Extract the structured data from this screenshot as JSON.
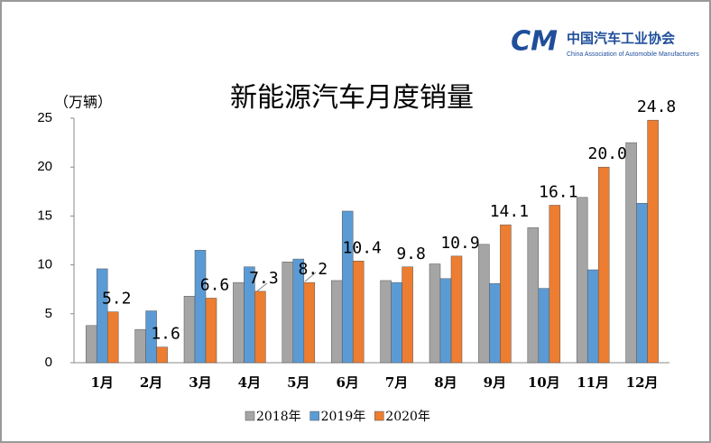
{
  "chart_data": {
    "type": "bar",
    "title": "新能源汽车月度销量",
    "y_label": "（万辆）",
    "logo": {
      "mark": "CM",
      "name": "中国汽车工业协会",
      "subtitle": "China Association of Automobile Manufacturers"
    },
    "categories": [
      "1月",
      "2月",
      "3月",
      "4月",
      "5月",
      "6月",
      "7月",
      "8月",
      "9月",
      "10月",
      "11月",
      "12月"
    ],
    "series": [
      {
        "name": "2018年",
        "color": "#a5a5a5",
        "values": [
          3.8,
          3.4,
          6.8,
          8.2,
          10.3,
          8.4,
          8.4,
          10.1,
          12.1,
          13.8,
          16.9,
          22.5
        ]
      },
      {
        "name": "2019年",
        "color": "#5b9bd5",
        "values": [
          9.6,
          5.3,
          11.5,
          9.8,
          10.6,
          15.5,
          8.2,
          8.6,
          8.1,
          7.6,
          9.5,
          16.3
        ]
      },
      {
        "name": "2020年",
        "color": "#ed7d31",
        "values": [
          5.2,
          1.6,
          6.6,
          7.3,
          8.2,
          10.4,
          9.8,
          10.9,
          14.1,
          16.1,
          20,
          24.8
        ],
        "value_labels": [
          "5.2",
          "1.6",
          "6.6",
          "7.3",
          "8.2",
          "10.4",
          "9.8",
          "10.9",
          "14.1",
          "16.1",
          "20.0",
          "24.8"
        ]
      }
    ],
    "ylim": [
      0,
      25
    ],
    "yticks": [
      0,
      5,
      10,
      15,
      20,
      25
    ],
    "grid": false,
    "legend": "bottom"
  }
}
